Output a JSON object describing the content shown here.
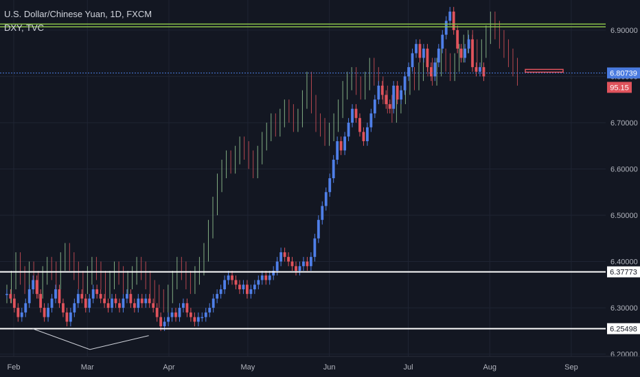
{
  "legend": {
    "line1": "U.S. Dollar/Chinese Yuan, 1D, FXCM",
    "line2": "DXY, TVC"
  },
  "colors": {
    "background": "#131722",
    "up": "#4f7fe8",
    "down": "#e0535c",
    "dxy_up": "#9fd49c",
    "dxy_down": "#e0535c",
    "grid": "#1f2433",
    "support": "#ffffff",
    "resistance": "#8bc34a",
    "price_tag": "#4a7be0",
    "dxy_tag": "#e0535c"
  },
  "chart_data": {
    "type": "candlestick",
    "title": "U.S. Dollar/Chinese Yuan, 1D, FXCM",
    "overlay": "DXY, TVC",
    "ylim": [
      6.195,
      6.965
    ],
    "y_ticks": [
      "6.90000",
      "6.80000",
      "6.70000",
      "6.60000",
      "6.50000",
      "6.40000",
      "6.30000",
      "6.20000"
    ],
    "y_tick_values": [
      6.9,
      6.8,
      6.7,
      6.6,
      6.5,
      6.4,
      6.3,
      6.2
    ],
    "x_labels": [
      "Feb",
      "Mar",
      "Apr",
      "May",
      "Jun",
      "Jul",
      "Aug",
      "Sep"
    ],
    "x_label_days": [
      0,
      28,
      59,
      89,
      120,
      150,
      181,
      212
    ],
    "xlim": [
      0,
      230
    ],
    "current_price": "6.80739",
    "current_price_value": 6.80739,
    "dxy_value": "95.15",
    "support_lines": [
      {
        "label": "6.37773",
        "value": 6.37773
      },
      {
        "label": "6.25498",
        "value": 6.25498
      }
    ],
    "resistance_value": 6.913,
    "usdcny_closes": [
      6.33,
      6.32,
      6.3,
      6.28,
      6.29,
      6.31,
      6.34,
      6.36,
      6.33,
      6.3,
      6.28,
      6.3,
      6.32,
      6.34,
      6.31,
      6.29,
      6.27,
      6.29,
      6.31,
      6.33,
      6.32,
      6.3,
      6.32,
      6.34,
      6.33,
      6.32,
      6.31,
      6.3,
      6.32,
      6.31,
      6.3,
      6.32,
      6.33,
      6.31,
      6.3,
      6.32,
      6.31,
      6.32,
      6.31,
      6.3,
      6.28,
      6.26,
      6.27,
      6.28,
      6.29,
      6.28,
      6.3,
      6.31,
      6.29,
      6.28,
      6.27,
      6.28,
      6.28,
      6.29,
      6.3,
      6.32,
      6.33,
      6.34,
      6.36,
      6.37,
      6.36,
      6.35,
      6.34,
      6.35,
      6.33,
      6.34,
      6.35,
      6.36,
      6.37,
      6.36,
      6.37,
      6.38,
      6.4,
      6.42,
      6.41,
      6.4,
      6.39,
      6.38,
      6.39,
      6.4,
      6.39,
      6.41,
      6.45,
      6.49,
      6.52,
      6.55,
      6.58,
      6.62,
      6.66,
      6.64,
      6.67,
      6.7,
      6.73,
      6.71,
      6.68,
      6.66,
      6.69,
      6.72,
      6.75,
      6.78,
      6.76,
      6.74,
      6.73,
      6.78,
      6.75,
      6.77,
      6.8,
      6.82,
      6.85,
      6.87,
      6.84,
      6.86,
      6.82,
      6.8,
      6.83,
      6.86,
      6.89,
      6.92,
      6.94,
      6.9,
      6.86,
      6.84,
      6.86,
      6.88,
      6.82,
      6.81,
      6.82,
      6.8
    ]
  },
  "dxy_closes": [
    6.33,
    6.36,
    6.4,
    6.37,
    6.35,
    6.38,
    6.36,
    6.34,
    6.37,
    6.39,
    6.38,
    6.36,
    6.4,
    6.42,
    6.4,
    6.38,
    6.36,
    6.35,
    6.37,
    6.39,
    6.38,
    6.36,
    6.34,
    6.36,
    6.38,
    6.37,
    6.35,
    6.36,
    6.37,
    6.39,
    6.38,
    6.36,
    6.34,
    6.33,
    6.32,
    6.31,
    6.33,
    6.36,
    6.39,
    6.38,
    6.36,
    6.35,
    6.37,
    6.39,
    6.42,
    6.47,
    6.52,
    6.57,
    6.6,
    6.62,
    6.61,
    6.63,
    6.65,
    6.64,
    6.62,
    6.6,
    6.63,
    6.66,
    6.68,
    6.7,
    6.69,
    6.71,
    6.73,
    6.72,
    6.7,
    6.71,
    6.75,
    6.79,
    6.74,
    6.7,
    6.69,
    6.67,
    6.68,
    6.7,
    6.73,
    6.77,
    6.79,
    6.8,
    6.78,
    6.77,
    6.79,
    6.82,
    6.8,
    6.78,
    6.76,
    6.74,
    6.72,
    6.74,
    6.76,
    6.78,
    6.8,
    6.79,
    6.81,
    6.83,
    6.82,
    6.8,
    6.82,
    6.84,
    6.83,
    6.81,
    6.83,
    6.85,
    6.87,
    6.88,
    6.86,
    6.84,
    6.86,
    6.89,
    6.92,
    6.9,
    6.88,
    6.86,
    6.84,
    6.82,
    6.8
  ]
}
